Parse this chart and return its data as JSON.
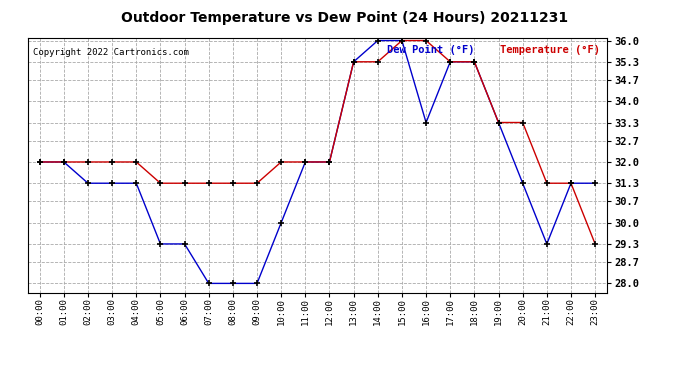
{
  "title": "Outdoor Temperature vs Dew Point (24 Hours) 20211231",
  "copyright": "Copyright 2022 Cartronics.com",
  "legend_dew": "Dew Point (°F)",
  "legend_temp": "Temperature (°F)",
  "hours": [
    "00:00",
    "01:00",
    "02:00",
    "03:00",
    "04:00",
    "05:00",
    "06:00",
    "07:00",
    "08:00",
    "09:00",
    "10:00",
    "11:00",
    "12:00",
    "13:00",
    "14:00",
    "15:00",
    "16:00",
    "17:00",
    "18:00",
    "19:00",
    "20:00",
    "21:00",
    "22:00",
    "23:00"
  ],
  "temperature": [
    32.0,
    32.0,
    32.0,
    32.0,
    32.0,
    31.3,
    31.3,
    31.3,
    31.3,
    31.3,
    32.0,
    32.0,
    32.0,
    35.3,
    35.3,
    36.0,
    36.0,
    35.3,
    35.3,
    33.3,
    33.3,
    31.3,
    31.3,
    29.3
  ],
  "dew_point": [
    32.0,
    32.0,
    31.3,
    31.3,
    31.3,
    29.3,
    29.3,
    28.0,
    28.0,
    28.0,
    30.0,
    32.0,
    32.0,
    35.3,
    36.0,
    36.0,
    33.3,
    35.3,
    35.3,
    33.3,
    31.3,
    29.3,
    31.3,
    31.3
  ],
  "temp_color": "#cc0000",
  "dew_color": "#0000cc",
  "background_color": "#ffffff",
  "plot_bg_color": "#ffffff",
  "grid_color": "#aaaaaa",
  "ylim_min": 27.7,
  "ylim_max": 36.1,
  "yticks": [
    28.0,
    28.7,
    29.3,
    30.0,
    30.7,
    31.3,
    32.0,
    32.7,
    33.3,
    34.0,
    34.7,
    35.3,
    36.0
  ]
}
